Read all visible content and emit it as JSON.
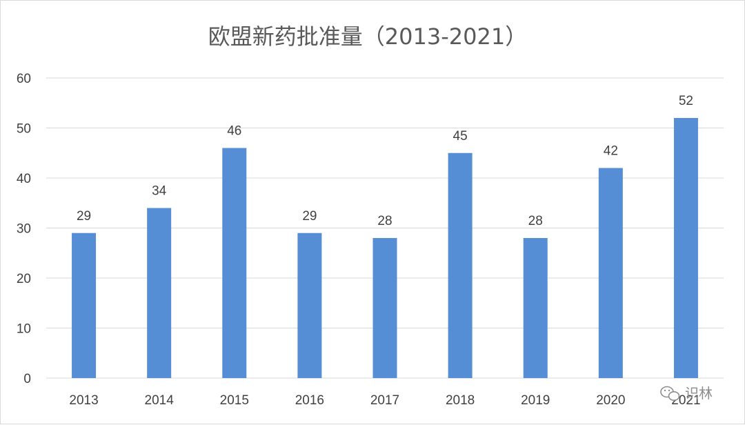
{
  "chart_data": {
    "type": "bar",
    "title": "欧盟新药批准量（2013-2021）",
    "categories": [
      "2013",
      "2014",
      "2015",
      "2016",
      "2017",
      "2018",
      "2019",
      "2020",
      "2021"
    ],
    "values": [
      29,
      34,
      46,
      29,
      28,
      45,
      28,
      42,
      52
    ],
    "xlabel": "",
    "ylabel": "",
    "ylim": [
      0,
      60
    ],
    "yticks": [
      0,
      10,
      20,
      30,
      40,
      50,
      60
    ],
    "grid": true,
    "legend": "none",
    "data_labels": true,
    "bar_color": "#558ed5",
    "grid_color": "#d9d9d9",
    "text_color": "#404040"
  },
  "watermark": {
    "text": "识林",
    "icon": "wechat-icon"
  }
}
